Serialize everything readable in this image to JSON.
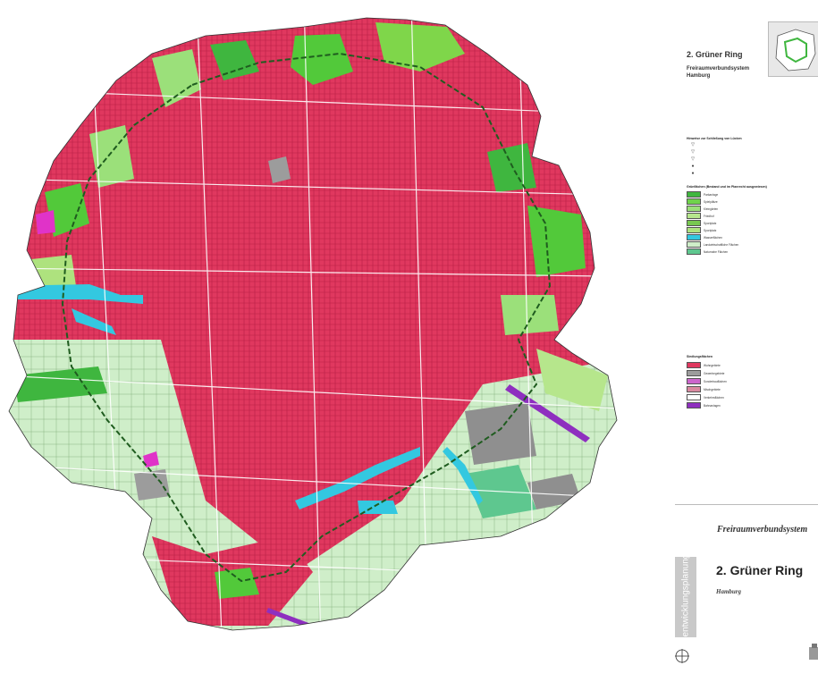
{
  "legend": {
    "title": "2. Grüner Ring",
    "subtitle": "Freiraumverbundsystem Hamburg",
    "sections": [
      "Hinweise zur Schließung von Lücken",
      "Grünflächen (Bestand und im Planrecht ausgewiesen)",
      "Siedlungsflächen"
    ],
    "green_items": [
      {
        "label": "Parkanlage",
        "color": "#3fb63f"
      },
      {
        "label": "Spielplätze",
        "color": "#6fd34b"
      },
      {
        "label": "Kleingärten",
        "color": "#9be07a"
      },
      {
        "label": "Friedhof",
        "color": "#b6e68c"
      },
      {
        "label": "Sportplatz",
        "color": "#78c850"
      },
      {
        "label": "Sportplatz",
        "color": "#aee27e"
      },
      {
        "label": "Wasserflächen",
        "color": "#33c8e0"
      },
      {
        "label": "Landwirtschaftliche Flächen",
        "color": "#cfeec9"
      },
      {
        "label": "Naturnahe Flächen",
        "color": "#5ec78f"
      }
    ],
    "settlement_items": [
      {
        "label": "Wohngebiete",
        "color": "#e0385f"
      },
      {
        "label": "Gewerbegebiete",
        "color": "#9c9c9c"
      },
      {
        "label": "Sonderbauflächen",
        "color": "#cc66cc"
      },
      {
        "label": "Mischgebiete",
        "color": "#d98aa0"
      },
      {
        "label": "Verkehrsflächen",
        "color": "#ffffff"
      },
      {
        "label": "Bahnanlagen",
        "color": "#8e2fbf"
      }
    ],
    "bottom_title": "Freiraumverbundsystem",
    "sidebar_label": "entwicklungsplanung",
    "big_title": "2. Grüner Ring",
    "city": "Hamburg"
  },
  "colors": {
    "residential": "#e0385f",
    "park": "#52c93a",
    "agri": "#cfeec9",
    "water": "#33c8e0",
    "industrial": "#8f8f8f",
    "special": "#e033c8",
    "road": "#ffffff"
  }
}
